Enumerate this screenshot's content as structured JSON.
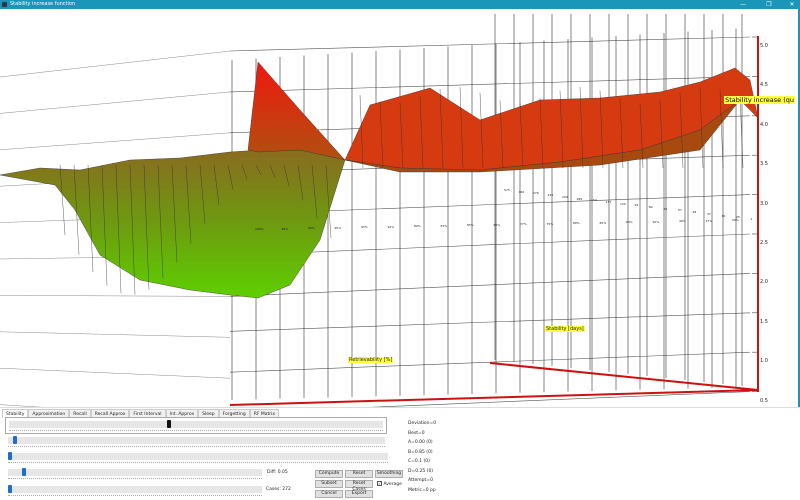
{
  "window": {
    "title": "Stability increase function",
    "minimize": "—",
    "maximize": "❐",
    "close": "✕",
    "accent": "#1a97b8"
  },
  "chart": {
    "z_axis_label": "Stability increase (qu",
    "x_axis_label": "Retrievability [%]",
    "y_axis_label": "Stability [days]",
    "z_ticks": [
      "5.0",
      "4.5",
      "4.0",
      "3.5",
      "3.0",
      "2.5",
      "2.0",
      "1.5",
      "1.0",
      "0.5"
    ],
    "stability_ticks": [
      "575",
      "460",
      "276",
      "230",
      "204",
      "180",
      "154",
      "137",
      "120",
      "94",
      "82",
      "65",
      "57",
      "48",
      "37",
      "30",
      "25",
      "1"
    ],
    "retrievability_ticks": [
      "100%",
      "98%",
      "96%",
      "95%",
      "93%",
      "92%",
      "89%",
      "87%",
      "85%",
      "80%",
      "77%",
      "75%",
      "68%",
      "65%",
      "60%",
      "50%",
      "40%",
      "27%",
      "20%"
    ],
    "axis_color": "#cc1111"
  },
  "tabs": [
    "Stability",
    "Approximation",
    "Recall",
    "Recall Approx",
    "First Interval",
    "Int. Approx",
    "Sleep",
    "Forgetting",
    "RF Matrix"
  ],
  "controls": {
    "diff": "Diff: 0.05",
    "cases": "Cases: 272",
    "average": "Average",
    "average_checked": true,
    "sliders": {
      "s1": 0.42,
      "s2": 0.02,
      "s3": 0.0,
      "diff": 0.06,
      "cases": 0.0
    }
  },
  "buttons": {
    "compute": "Compute",
    "reset": "Reset",
    "smoothing": "Smoothing",
    "subset": "Subset",
    "reset_cases": "Reset Cases",
    "cancel": "Cancel",
    "export": "Export"
  },
  "stats": [
    "Deviation=0",
    "Best=0",
    "A=0.00 (0)",
    "B=0.85 (0)",
    "C=0.1 (0)",
    "D=0.25 (0)",
    "Attempt=0",
    "Metric=0 pp"
  ]
}
